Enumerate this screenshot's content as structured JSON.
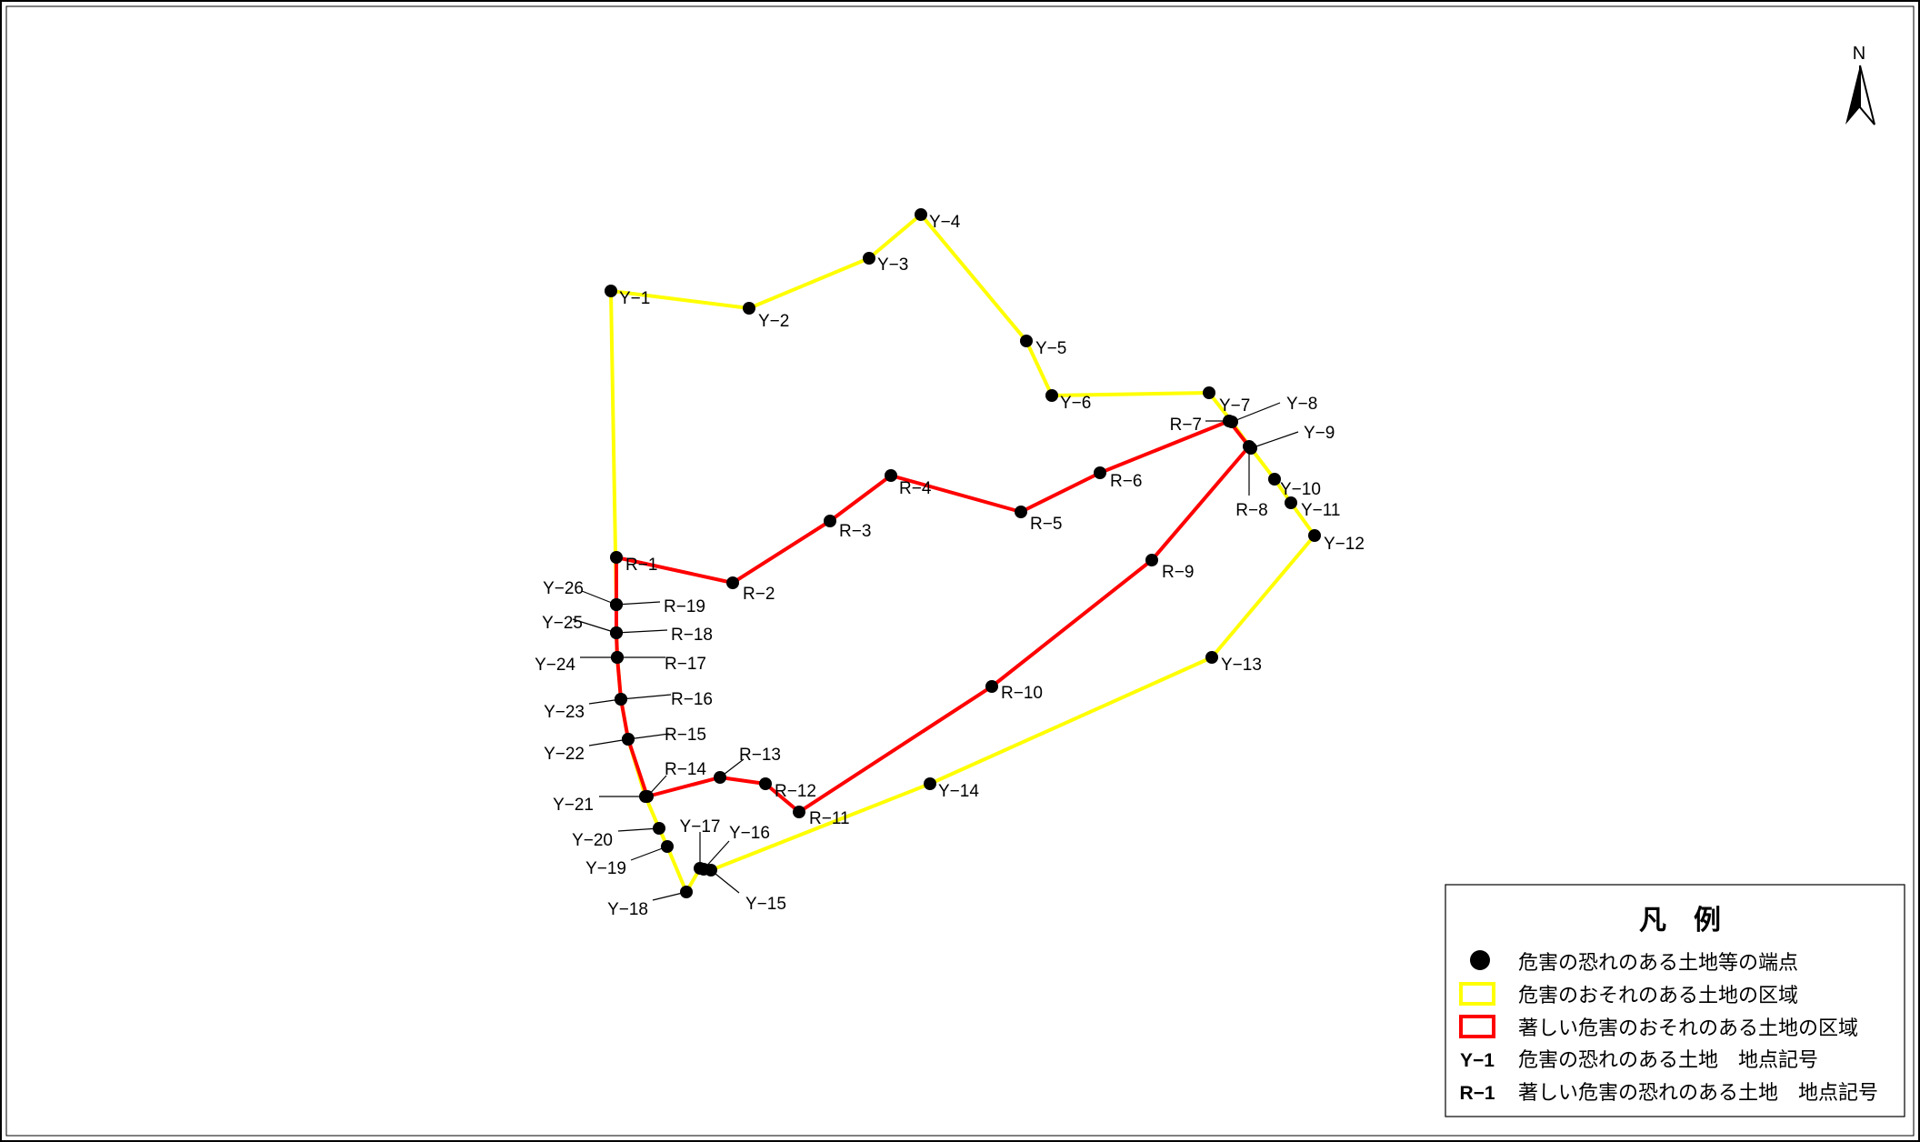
{
  "north_arrow": {
    "label": "N",
    "icon": "north-arrow-icon"
  },
  "legend": {
    "title": "凡　例",
    "items": [
      {
        "symbol": "point",
        "text": "危害の恐れのある土地等の端点"
      },
      {
        "symbol": "yellow-box",
        "color": "#ffff00",
        "text": "危害のおそれのある土地の区域"
      },
      {
        "symbol": "red-box",
        "color": "#ff0000",
        "text": "著しい危害のおそれのある土地の区域"
      },
      {
        "symbol": "code",
        "code": "Y−1",
        "text": "危害の恐れのある土地　地点記号"
      },
      {
        "symbol": "code",
        "code": "R−1",
        "text": "著しい危害の恐れのある土地　地点記号"
      }
    ]
  },
  "colors": {
    "yellow_zone": "#ffff00",
    "red_zone": "#ff0000",
    "point": "#000000"
  },
  "points": {
    "yellow": [
      "Y−1",
      "Y−2",
      "Y−3",
      "Y−4",
      "Y−5",
      "Y−6",
      "Y−7",
      "Y−8",
      "Y−9",
      "Y−10",
      "Y−11",
      "Y−12",
      "Y−13",
      "Y−14",
      "Y−15",
      "Y−16",
      "Y−17",
      "Y−18",
      "Y−19",
      "Y−20",
      "Y−21",
      "Y−22",
      "Y−23",
      "Y−24",
      "Y−25",
      "Y−26"
    ],
    "red": [
      "R−1",
      "R−2",
      "R−3",
      "R−4",
      "R−5",
      "R−6",
      "R−7",
      "R−8",
      "R−9",
      "R−10",
      "R−11",
      "R−12",
      "R−13",
      "R−14",
      "R−15",
      "R−16",
      "R−17",
      "R−18",
      "R−19"
    ]
  }
}
